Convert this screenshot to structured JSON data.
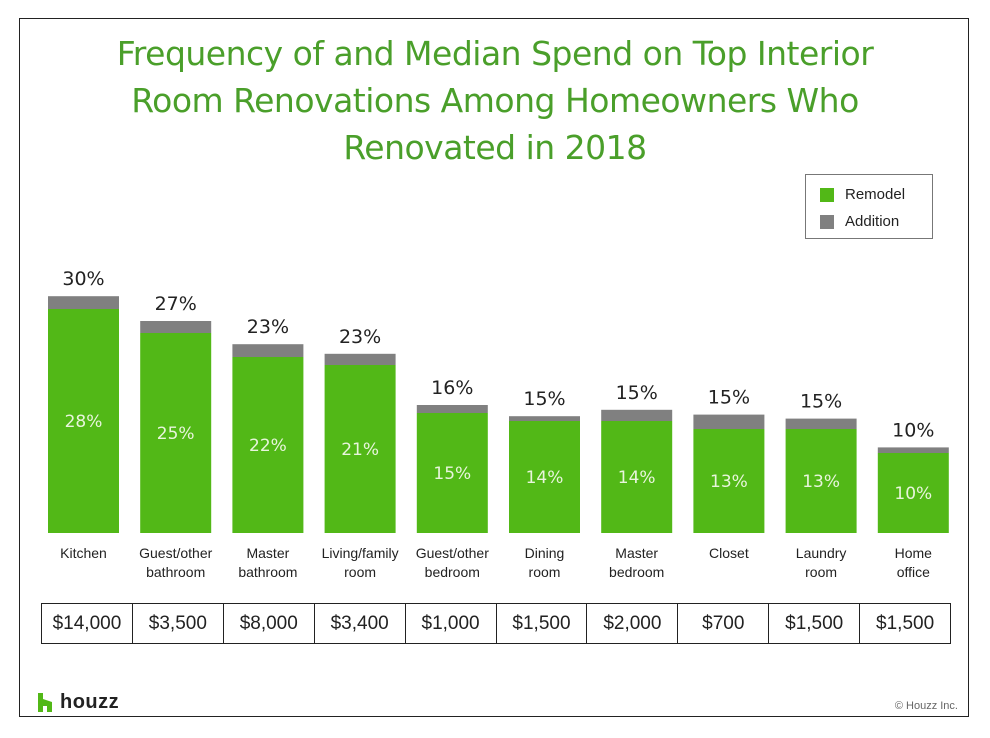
{
  "chart_data": {
    "type": "bar",
    "stacked": true,
    "title": "Frequency of and Median Spend on Top Interior Room Renovations Among Homeowners Who Renovated in 2018",
    "title_lines": [
      "Frequency of and Median Spend on Top Interior",
      "Room Renovations Among Homeowners Who",
      "Renovated in 2018"
    ],
    "categories": [
      [
        "Kitchen"
      ],
      [
        "Guest/other",
        "bathroom"
      ],
      [
        "Master",
        "bathroom"
      ],
      [
        "Living/family",
        "room"
      ],
      [
        "Guest/other",
        "bedroom"
      ],
      [
        "Dining",
        "room"
      ],
      [
        "Master",
        "bedroom"
      ],
      [
        "Closet"
      ],
      [
        "Laundry",
        "room"
      ],
      [
        "Home",
        "office"
      ]
    ],
    "series": [
      {
        "name": "Remodel",
        "color": "#52b817",
        "values": [
          28,
          25,
          22,
          21,
          15,
          14,
          14,
          13,
          13,
          10
        ]
      },
      {
        "name": "Addition",
        "color": "#808080",
        "values": [
          1.6,
          1.5,
          1.6,
          1.4,
          1.0,
          0.6,
          1.4,
          1.8,
          1.3,
          0.7
        ]
      }
    ],
    "totals": [
      30,
      27,
      23,
      23,
      16,
      15,
      15,
      15,
      15,
      10
    ],
    "total_labels": [
      "30%",
      "27%",
      "23%",
      "23%",
      "16%",
      "15%",
      "15%",
      "15%",
      "15%",
      "10%"
    ],
    "remodel_labels": [
      "28%",
      "25%",
      "22%",
      "21%",
      "15%",
      "14%",
      "14%",
      "13%",
      "13%",
      "10%"
    ],
    "median_spend": [
      "$14,000",
      "$3,500",
      "$8,000",
      "$3,400",
      "$1,000",
      "$1,500",
      "$2,000",
      "$700",
      "$1,500",
      "$1,500"
    ],
    "xlabel": "",
    "ylabel": "",
    "ylim": [
      0,
      30
    ],
    "grid": false,
    "legend_position": "top-right"
  },
  "legend": {
    "items": [
      {
        "label": "Remodel",
        "color": "#52b817"
      },
      {
        "label": "Addition",
        "color": "#808080"
      }
    ]
  },
  "footer": {
    "brand": "houzz",
    "brand_color": "#52b817",
    "copyright": "© Houzz Inc."
  }
}
